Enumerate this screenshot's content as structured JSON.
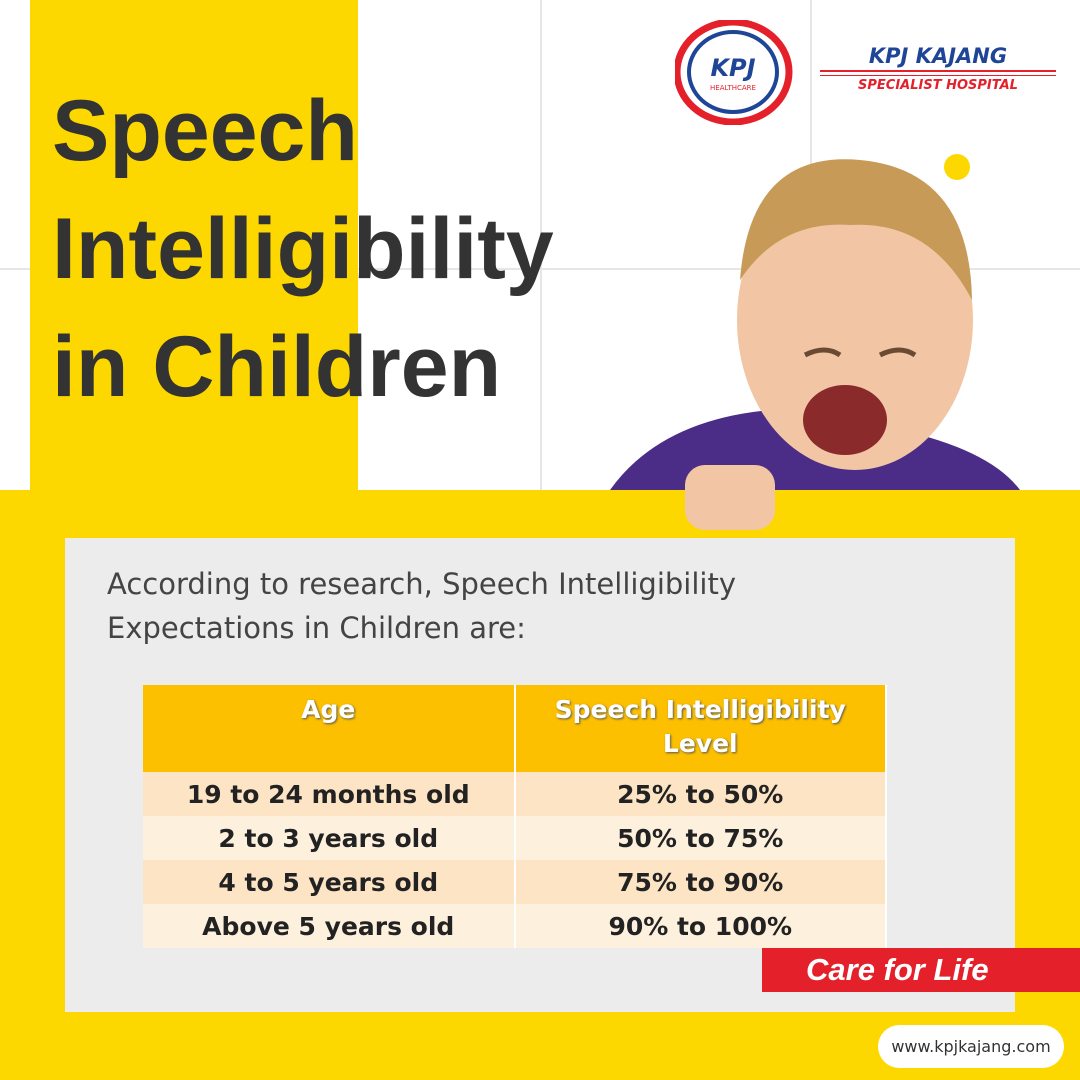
{
  "header": {
    "title_lines": [
      "Speech",
      "Intelligibility",
      "in Children"
    ],
    "logo": {
      "mark": "KPJ",
      "mark_sub": "HEALTHCARE",
      "name": "KPJ KAJANG",
      "subtitle": "SPECIALIST HOSPITAL"
    }
  },
  "intro": "According to research, Speech Intelligibility Expectations in Children are:",
  "table": {
    "header": [
      "Age",
      "Speech Intelligibility Level"
    ],
    "rows": [
      [
        "19 to 24 months old",
        "25% to 50%"
      ],
      [
        "2 to 3 years old",
        "50% to 75%"
      ],
      [
        "4 to 5 years old",
        "75% to 90%"
      ],
      [
        "Above 5 years old",
        "90% to 100%"
      ]
    ]
  },
  "tagline": "Care for Life",
  "website": "www.kpjkajang.com"
}
